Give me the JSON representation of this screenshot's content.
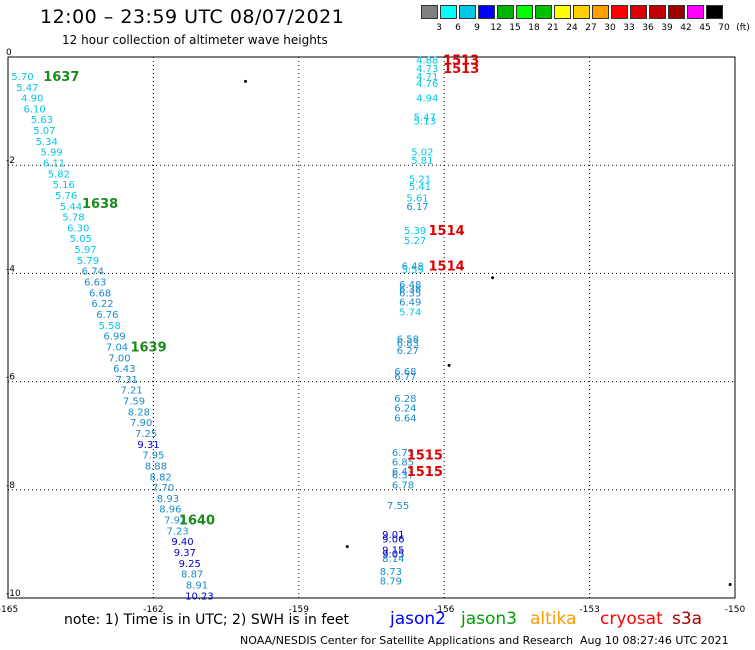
{
  "header": {
    "title": "12:00 – 23:59 UTC 08/07/2021",
    "subtitle": "12 hour collection of altimeter wave heights"
  },
  "color_scale": {
    "labels": [
      "3",
      "6",
      "9",
      "12",
      "15",
      "18",
      "21",
      "24",
      "27",
      "30",
      "33",
      "36",
      "39",
      "42",
      "45",
      "70",
      "(ft)"
    ],
    "colors": [
      "#808080",
      "#00ffff",
      "#00c8e6",
      "#0000ff",
      "#00b400",
      "#00ff00",
      "#00c000",
      "#ffff00",
      "#ffd000",
      "#ffa000",
      "#ff0000",
      "#dc0000",
      "#c00000",
      "#a00000",
      "#ff00ff",
      "#000000"
    ]
  },
  "axes": {
    "x_ticks": [
      "-165",
      "-162",
      "-159",
      "-156",
      "-153",
      "-150"
    ],
    "y_ticks": [
      "0",
      "-2",
      "-4",
      "-6",
      "-8",
      "-10"
    ],
    "x_range": [
      -165,
      -150
    ],
    "y_range": [
      -10,
      0
    ],
    "grid": true
  },
  "tracks": [
    {
      "satellite": "jason3",
      "label_color": "#1a8a1a",
      "time_labels": [
        {
          "text": "1637",
          "lon": -163.9,
          "lat": -0.35
        },
        {
          "text": "1638",
          "lon": -163.1,
          "lat": -2.7
        },
        {
          "text": "1639",
          "lon": -162.1,
          "lat": -5.35
        },
        {
          "text": "1640",
          "lon": -161.1,
          "lat": -8.55
        }
      ],
      "swh": [
        {
          "v": "5.70",
          "lon": -164.7,
          "lat": -0.35,
          "c": "#00c8e6"
        },
        {
          "v": "5.47",
          "lon": -164.6,
          "lat": -0.55,
          "c": "#00c8e6"
        },
        {
          "v": "4.90",
          "lon": -164.5,
          "lat": -0.75,
          "c": "#00c8e6"
        },
        {
          "v": "6.10",
          "lon": -164.45,
          "lat": -0.95,
          "c": "#00c8e6"
        },
        {
          "v": "5.63",
          "lon": -164.3,
          "lat": -1.15,
          "c": "#00c8e6"
        },
        {
          "v": "5.07",
          "lon": -164.25,
          "lat": -1.35,
          "c": "#00c8e6"
        },
        {
          "v": "5.34",
          "lon": -164.2,
          "lat": -1.55,
          "c": "#00c8e6"
        },
        {
          "v": "5.99",
          "lon": -164.1,
          "lat": -1.75,
          "c": "#00c8e6"
        },
        {
          "v": "6.11",
          "lon": -164.05,
          "lat": -1.95,
          "c": "#00c8e6"
        },
        {
          "v": "5.82",
          "lon": -163.95,
          "lat": -2.15,
          "c": "#00c8e6"
        },
        {
          "v": "5.16",
          "lon": -163.85,
          "lat": -2.35,
          "c": "#00c8e6"
        },
        {
          "v": "5.76",
          "lon": -163.8,
          "lat": -2.55,
          "c": "#00c8e6"
        },
        {
          "v": "5.44",
          "lon": -163.7,
          "lat": -2.75,
          "c": "#00c8e6"
        },
        {
          "v": "5.78",
          "lon": -163.65,
          "lat": -2.95,
          "c": "#00c8e6"
        },
        {
          "v": "6.30",
          "lon": -163.55,
          "lat": -3.15,
          "c": "#00c8e6"
        },
        {
          "v": "5.05",
          "lon": -163.5,
          "lat": -3.35,
          "c": "#00c8e6"
        },
        {
          "v": "5.97",
          "lon": -163.4,
          "lat": -3.55,
          "c": "#00c8e6"
        },
        {
          "v": "5.79",
          "lon": -163.35,
          "lat": -3.75,
          "c": "#00c8e6"
        },
        {
          "v": "6.74",
          "lon": -163.25,
          "lat": -3.95,
          "c": "#1a8ccc"
        },
        {
          "v": "6.63",
          "lon": -163.2,
          "lat": -4.15,
          "c": "#1a8ccc"
        },
        {
          "v": "6.68",
          "lon": -163.1,
          "lat": -4.35,
          "c": "#1a8ccc"
        },
        {
          "v": "6.22",
          "lon": -163.05,
          "lat": -4.55,
          "c": "#1a8ccc"
        },
        {
          "v": "6.76",
          "lon": -162.95,
          "lat": -4.75,
          "c": "#1a8ccc"
        },
        {
          "v": "5.58",
          "lon": -162.9,
          "lat": -4.95,
          "c": "#00c8e6"
        },
        {
          "v": "6.99",
          "lon": -162.8,
          "lat": -5.15,
          "c": "#1a8ccc"
        },
        {
          "v": "7.04",
          "lon": -162.75,
          "lat": -5.35,
          "c": "#1a8ccc"
        },
        {
          "v": "7.00",
          "lon": -162.7,
          "lat": -5.55,
          "c": "#1a8ccc"
        },
        {
          "v": "6.43",
          "lon": -162.6,
          "lat": -5.75,
          "c": "#1a8ccc"
        },
        {
          "v": "7.31",
          "lon": -162.55,
          "lat": -5.95,
          "c": "#1a8ccc"
        },
        {
          "v": "7.21",
          "lon": -162.45,
          "lat": -6.15,
          "c": "#1a8ccc"
        },
        {
          "v": "7.59",
          "lon": -162.4,
          "lat": -6.35,
          "c": "#1a8ccc"
        },
        {
          "v": "8.28",
          "lon": -162.3,
          "lat": -6.55,
          "c": "#1a8ccc"
        },
        {
          "v": "7.90",
          "lon": -162.25,
          "lat": -6.75,
          "c": "#1a8ccc"
        },
        {
          "v": "7.25",
          "lon": -162.15,
          "lat": -6.95,
          "c": "#1a8ccc"
        },
        {
          "v": "9.31",
          "lon": -162.1,
          "lat": -7.15,
          "c": "#0000cc"
        },
        {
          "v": "7.95",
          "lon": -162.0,
          "lat": -7.35,
          "c": "#1a8ccc"
        },
        {
          "v": "8.88",
          "lon": -161.95,
          "lat": -7.55,
          "c": "#1a8ccc"
        },
        {
          "v": "8.82",
          "lon": -161.85,
          "lat": -7.75,
          "c": "#1a8ccc"
        },
        {
          "v": "7.70",
          "lon": -161.8,
          "lat": -7.95,
          "c": "#1a8ccc"
        },
        {
          "v": "8.93",
          "lon": -161.7,
          "lat": -8.15,
          "c": "#1a8ccc"
        },
        {
          "v": "8.96",
          "lon": -161.65,
          "lat": -8.35,
          "c": "#1a8ccc"
        },
        {
          "v": "7.92",
          "lon": -161.55,
          "lat": -8.55,
          "c": "#1a8ccc"
        },
        {
          "v": "7.23",
          "lon": -161.5,
          "lat": -8.75,
          "c": "#1a8ccc"
        },
        {
          "v": "9.40",
          "lon": -161.4,
          "lat": -8.95,
          "c": "#0000cc"
        },
        {
          "v": "9.37",
          "lon": -161.35,
          "lat": -9.15,
          "c": "#0000cc"
        },
        {
          "v": "9.25",
          "lon": -161.25,
          "lat": -9.35,
          "c": "#0000cc"
        },
        {
          "v": "8.87",
          "lon": -161.2,
          "lat": -9.55,
          "c": "#1a8ccc"
        },
        {
          "v": "8.91",
          "lon": -161.1,
          "lat": -9.75,
          "c": "#1a8ccc"
        },
        {
          "v": "10.23",
          "lon": -161.05,
          "lat": -9.95,
          "c": "#0000cc"
        }
      ]
    },
    {
      "satellite": "cryosat",
      "label_color": "#e00000",
      "time_labels": [
        {
          "text": "1513",
          "lon": -155.65,
          "lat": -0.05
        },
        {
          "text": "1513",
          "lon": -155.65,
          "lat": -0.2
        },
        {
          "text": "1514",
          "lon": -155.95,
          "lat": -3.2
        },
        {
          "text": "1514",
          "lon": -155.95,
          "lat": -3.85
        },
        {
          "text": "1515",
          "lon": -156.4,
          "lat": -7.35
        },
        {
          "text": "1515",
          "lon": -156.4,
          "lat": -7.65
        }
      ],
      "swh": [
        {
          "v": "4.88",
          "lon": -156.35,
          "lat": -0.05,
          "c": "#00c8e6"
        },
        {
          "v": "4.73",
          "lon": -156.35,
          "lat": -0.2,
          "c": "#00c8e6"
        },
        {
          "v": "4.71",
          "lon": -156.35,
          "lat": -0.35,
          "c": "#00c8e6"
        },
        {
          "v": "4.76",
          "lon": -156.35,
          "lat": -0.48,
          "c": "#00c8e6"
        },
        {
          "v": "4.94",
          "lon": -156.35,
          "lat": -0.75,
          "c": "#00c8e6"
        },
        {
          "v": "5.47",
          "lon": -156.4,
          "lat": -1.1,
          "c": "#00c8e6"
        },
        {
          "v": "5.13",
          "lon": -156.4,
          "lat": -1.17,
          "c": "#00c8e6"
        },
        {
          "v": "5.02",
          "lon": -156.45,
          "lat": -1.75,
          "c": "#00c8e6"
        },
        {
          "v": "5.81",
          "lon": -156.45,
          "lat": -1.9,
          "c": "#00c8e6"
        },
        {
          "v": "5.21",
          "lon": -156.5,
          "lat": -2.25,
          "c": "#00c8e6"
        },
        {
          "v": "5.41",
          "lon": -156.5,
          "lat": -2.38,
          "c": "#00c8e6"
        },
        {
          "v": "5.61",
          "lon": -156.55,
          "lat": -2.6,
          "c": "#00c8e6"
        },
        {
          "v": "6.17",
          "lon": -156.55,
          "lat": -2.75,
          "c": "#1a8ccc"
        },
        {
          "v": "5.39",
          "lon": -156.6,
          "lat": -3.2,
          "c": "#00c8e6"
        },
        {
          "v": "5.27",
          "lon": -156.6,
          "lat": -3.38,
          "c": "#00c8e6"
        },
        {
          "v": "6.48",
          "lon": -156.65,
          "lat": -3.85,
          "c": "#1a8ccc"
        },
        {
          "v": "5.59",
          "lon": -156.65,
          "lat": -3.92,
          "c": "#00c8e6"
        },
        {
          "v": "6.48",
          "lon": -156.7,
          "lat": -4.2,
          "c": "#1a8ccc"
        },
        {
          "v": "6.38",
          "lon": -156.7,
          "lat": -4.28,
          "c": "#1a8ccc"
        },
        {
          "v": "6.35",
          "lon": -156.7,
          "lat": -4.35,
          "c": "#1a8ccc"
        },
        {
          "v": "6.49",
          "lon": -156.7,
          "lat": -4.52,
          "c": "#1a8ccc"
        },
        {
          "v": "5.74",
          "lon": -156.7,
          "lat": -4.7,
          "c": "#00c8e6"
        },
        {
          "v": "6.58",
          "lon": -156.75,
          "lat": -5.2,
          "c": "#1a8ccc"
        },
        {
          "v": "6.83",
          "lon": -156.75,
          "lat": -5.28,
          "c": "#1a8ccc"
        },
        {
          "v": "6.27",
          "lon": -156.75,
          "lat": -5.42,
          "c": "#1a8ccc"
        },
        {
          "v": "6.68",
          "lon": -156.8,
          "lat": -5.8,
          "c": "#1a8ccc"
        },
        {
          "v": "6.77",
          "lon": -156.8,
          "lat": -5.9,
          "c": "#1a8ccc"
        },
        {
          "v": "6.28",
          "lon": -156.8,
          "lat": -6.3,
          "c": "#1a8ccc"
        },
        {
          "v": "6.24",
          "lon": -156.8,
          "lat": -6.48,
          "c": "#1a8ccc"
        },
        {
          "v": "6.64",
          "lon": -156.8,
          "lat": -6.66,
          "c": "#1a8ccc"
        },
        {
          "v": "6.73",
          "lon": -156.85,
          "lat": -7.3,
          "c": "#1a8ccc"
        },
        {
          "v": "6.85",
          "lon": -156.85,
          "lat": -7.48,
          "c": "#1a8ccc"
        },
        {
          "v": "6.41",
          "lon": -156.85,
          "lat": -7.65,
          "c": "#1a8ccc"
        },
        {
          "v": "6.37",
          "lon": -156.85,
          "lat": -7.72,
          "c": "#1a8ccc"
        },
        {
          "v": "6.78",
          "lon": -156.85,
          "lat": -7.9,
          "c": "#1a8ccc"
        },
        {
          "v": "7.55",
          "lon": -156.95,
          "lat": -8.28,
          "c": "#1a8ccc"
        },
        {
          "v": "9.01",
          "lon": -157.05,
          "lat": -8.82,
          "c": "#0000cc"
        },
        {
          "v": "9.06",
          "lon": -157.05,
          "lat": -8.9,
          "c": "#0000cc"
        },
        {
          "v": "9.15",
          "lon": -157.05,
          "lat": -9.1,
          "c": "#0000cc"
        },
        {
          "v": "9.05",
          "lon": -157.05,
          "lat": -9.18,
          "c": "#0000cc"
        },
        {
          "v": "8.14",
          "lon": -157.05,
          "lat": -9.26,
          "c": "#1a8ccc"
        },
        {
          "v": "8.73",
          "lon": -157.1,
          "lat": -9.5,
          "c": "#1a8ccc"
        },
        {
          "v": "8.79",
          "lon": -157.1,
          "lat": -9.68,
          "c": "#1a8ccc"
        }
      ]
    }
  ],
  "islands": [
    {
      "lon": -160.1,
      "lat": -0.45
    },
    {
      "lon": -155.0,
      "lat": -4.08
    },
    {
      "lon": -155.9,
      "lat": -5.7
    },
    {
      "lon": -158.0,
      "lat": -9.05
    },
    {
      "lon": -150.1,
      "lat": -9.75
    }
  ],
  "note": "note:  1) Time is in UTC; 2) SWH is in feet",
  "satellites_legend": [
    {
      "name": "jason2",
      "color": "#0000ff"
    },
    {
      "name": "jason3",
      "color": "#00a000"
    },
    {
      "name": "altika",
      "color": "#ff9900"
    },
    {
      "name": "cryosat",
      "color": "#ff0000"
    },
    {
      "name": "s3a",
      "color": "#a00000"
    }
  ],
  "footer": "NOAA/NESDIS Center for Satellite Applications and Research",
  "timestamp": "Aug 10 08:27:46 UTC 2021"
}
